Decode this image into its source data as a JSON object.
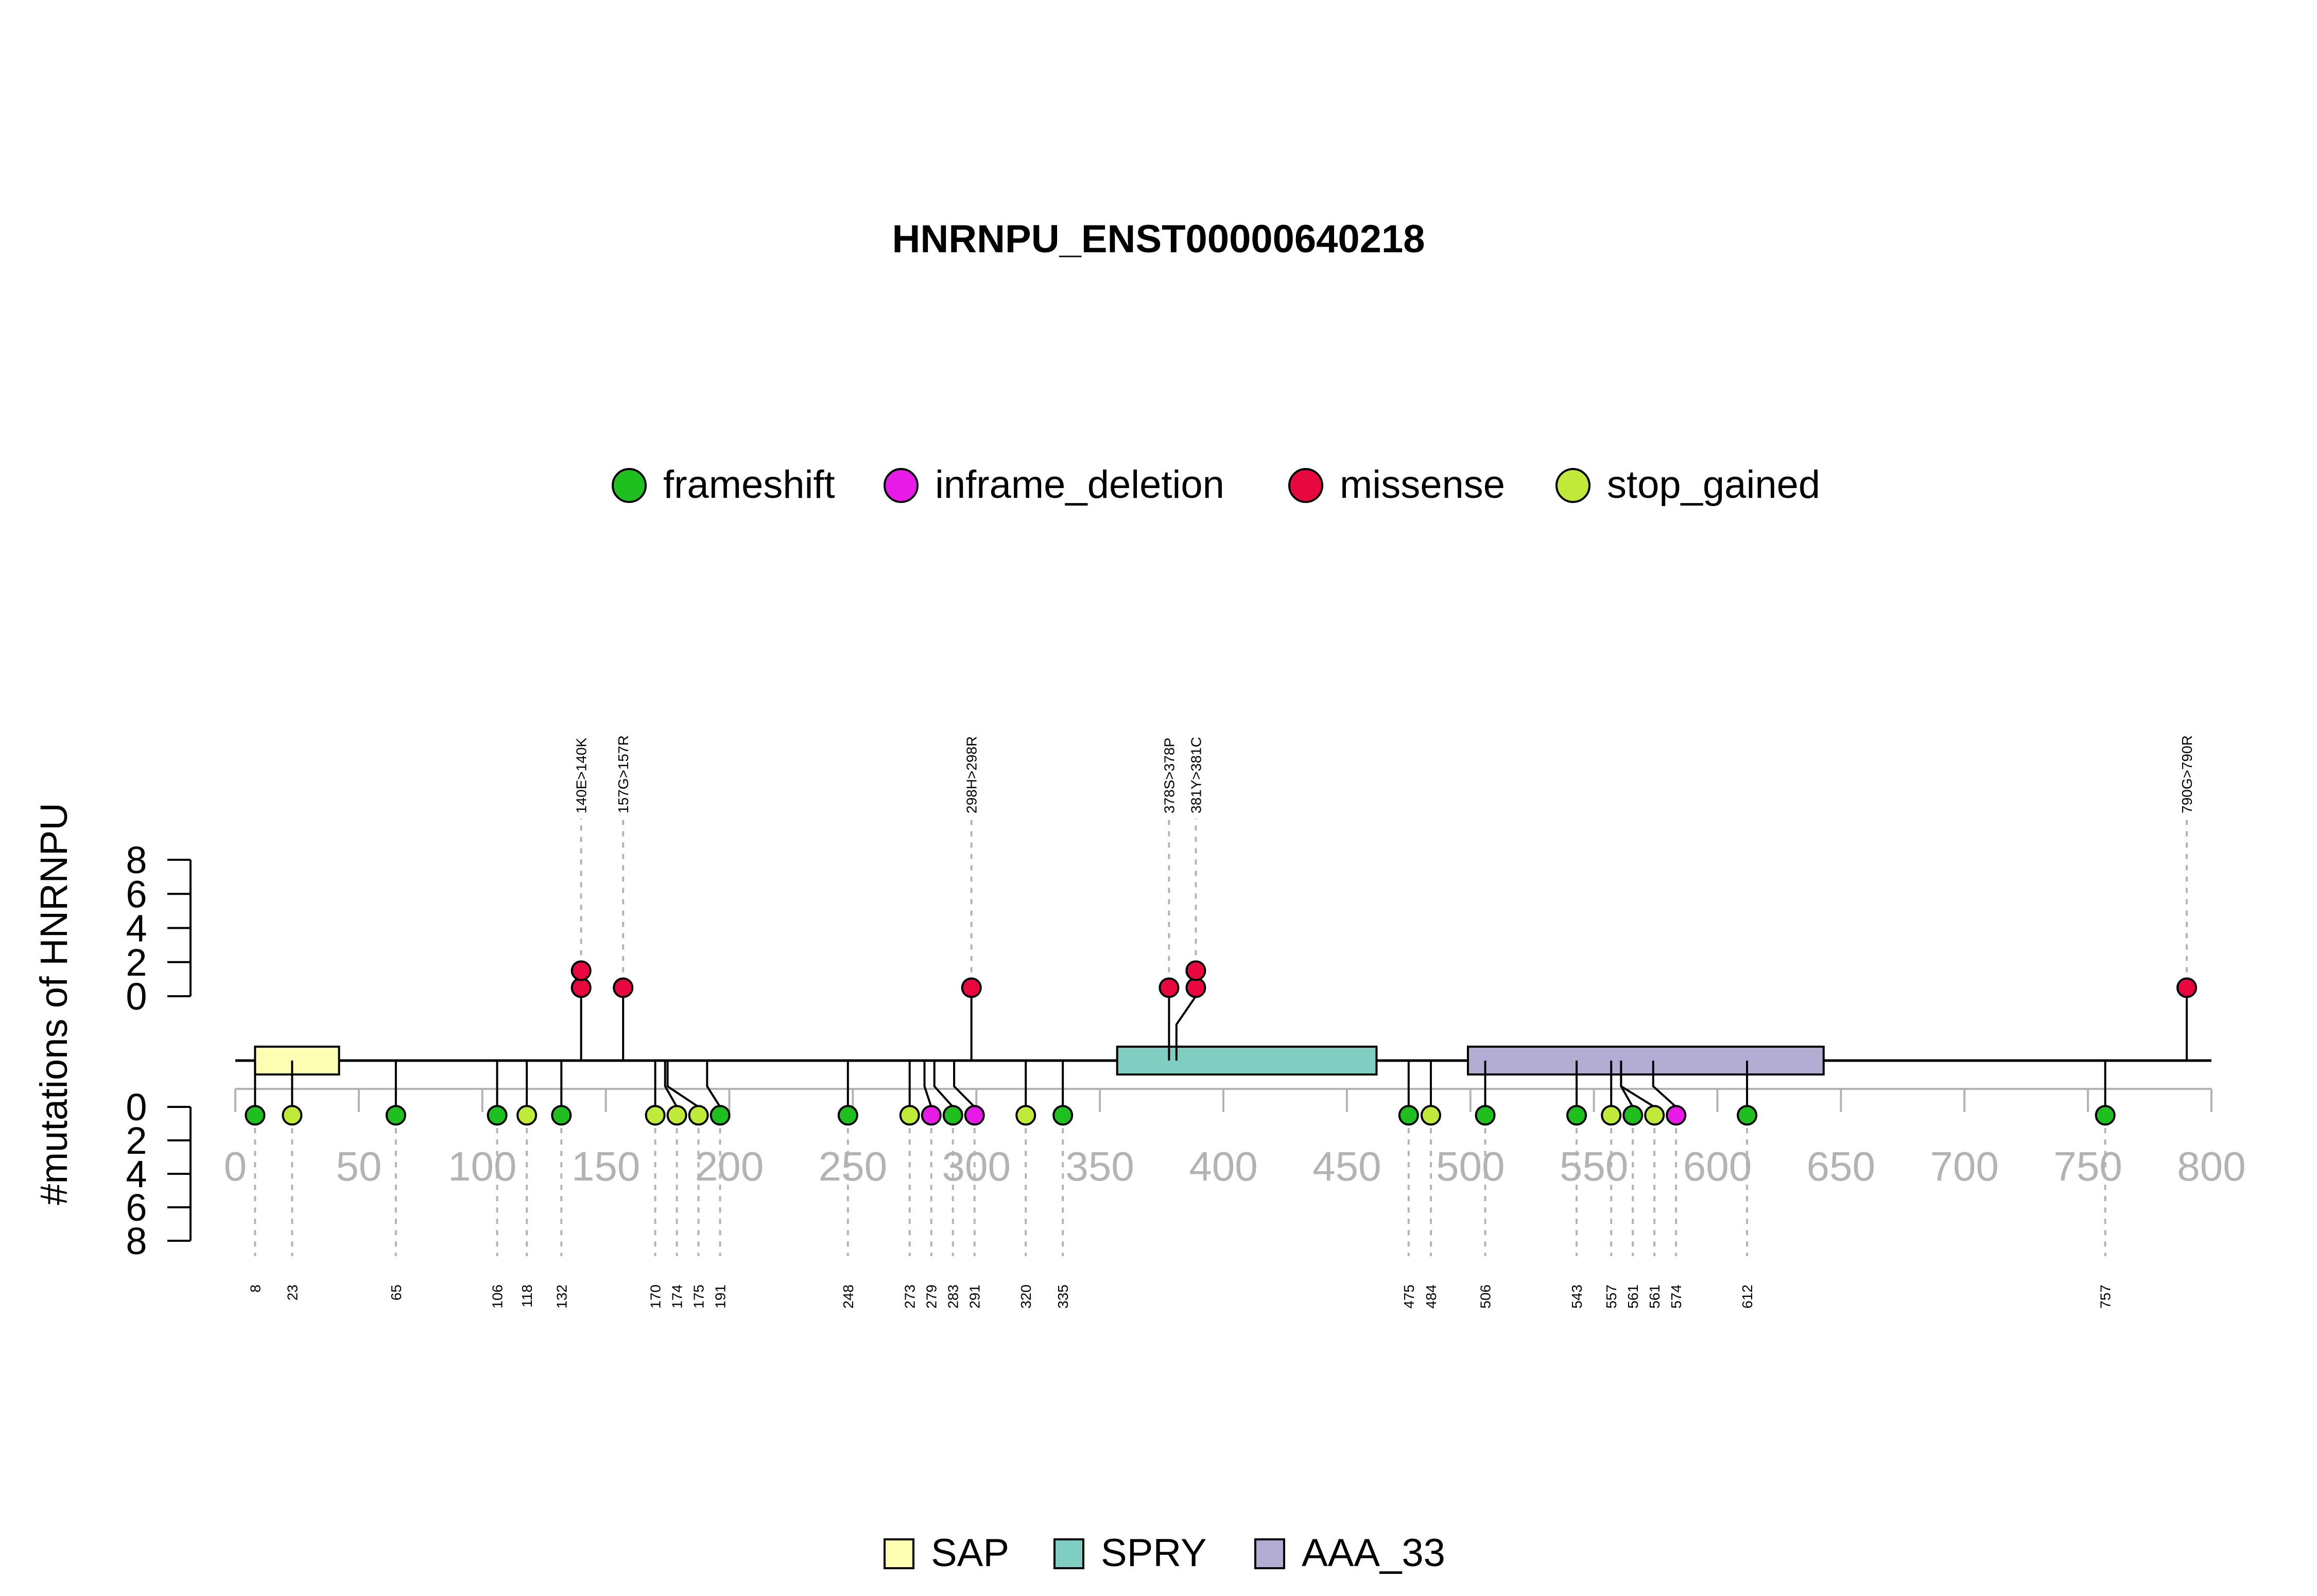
{
  "chart_data": {
    "type": "lollipop",
    "title": "HNRNPU_ENST00000640218",
    "ylabel": "#mutations of HNRNPU",
    "xlim": [
      0,
      800
    ],
    "x_ticks": [
      0,
      50,
      100,
      150,
      200,
      250,
      300,
      350,
      400,
      450,
      500,
      550,
      600,
      650,
      700,
      750,
      800
    ],
    "x_tick_labels": [
      "0",
      "50",
      "100",
      "150",
      "200",
      "250",
      "300",
      "350",
      "400",
      "450",
      "500",
      "550",
      "600",
      "650",
      "700",
      "750",
      "800"
    ],
    "y_ticks": [
      0,
      2,
      4,
      6,
      8
    ],
    "y_tick_labels": [
      "0",
      "2",
      "4",
      "6",
      "8"
    ],
    "ylim": [
      0,
      8
    ],
    "mutation_legend": [
      {
        "name": "frameshift",
        "color": "#1FBF1F"
      },
      {
        "name": "inframe_deletion",
        "color": "#E81AE8"
      },
      {
        "name": "missense",
        "color": "#E8083F"
      },
      {
        "name": "stop_gained",
        "color": "#BFEA3A"
      }
    ],
    "domains": [
      {
        "name": "SAP",
        "start": 8,
        "end": 42,
        "color": "#FFFFB3"
      },
      {
        "name": "SPRY",
        "start": 357,
        "end": 462,
        "color": "#80CDC1"
      },
      {
        "name": "AAA_33",
        "start": 499,
        "end": 643,
        "color": "#B3ADD3"
      }
    ],
    "upper_mutations": [
      {
        "pos": 140,
        "count": 2,
        "type": "missense",
        "label": "140E>140K"
      },
      {
        "pos": 157,
        "count": 1,
        "type": "missense",
        "label": "157G>157R"
      },
      {
        "pos": 298,
        "count": 1,
        "type": "missense",
        "label": "298H>298R"
      },
      {
        "pos": 378,
        "count": 1,
        "type": "missense",
        "label": "378S>378P"
      },
      {
        "pos": 381,
        "count": 2,
        "type": "missense",
        "label": "381Y>381C"
      },
      {
        "pos": 790,
        "count": 1,
        "type": "missense",
        "label": "790G>790R"
      }
    ],
    "lower_mutations": [
      {
        "pos": 8,
        "count": 1,
        "type": "frameshift",
        "label": "8"
      },
      {
        "pos": 23,
        "count": 1,
        "type": "stop_gained",
        "label": "23"
      },
      {
        "pos": 65,
        "count": 1,
        "type": "frameshift",
        "label": "65"
      },
      {
        "pos": 106,
        "count": 1,
        "type": "frameshift",
        "label": "106"
      },
      {
        "pos": 118,
        "count": 1,
        "type": "stop_gained",
        "label": "118"
      },
      {
        "pos": 132,
        "count": 1,
        "type": "frameshift",
        "label": "132"
      },
      {
        "pos": 170,
        "count": 1,
        "type": "stop_gained",
        "label": "170"
      },
      {
        "pos": 174,
        "count": 1,
        "type": "stop_gained",
        "label": "174"
      },
      {
        "pos": 175,
        "count": 1,
        "type": "stop_gained",
        "label": "175"
      },
      {
        "pos": 191,
        "count": 1,
        "type": "frameshift",
        "label": "191"
      },
      {
        "pos": 248,
        "count": 1,
        "type": "frameshift",
        "label": "248"
      },
      {
        "pos": 273,
        "count": 1,
        "type": "stop_gained",
        "label": "273"
      },
      {
        "pos": 279,
        "count": 1,
        "type": "inframe_deletion",
        "label": "279"
      },
      {
        "pos": 283,
        "count": 1,
        "type": "frameshift",
        "label": "283"
      },
      {
        "pos": 291,
        "count": 1,
        "type": "inframe_deletion",
        "label": "291"
      },
      {
        "pos": 320,
        "count": 1,
        "type": "stop_gained",
        "label": "320"
      },
      {
        "pos": 335,
        "count": 1,
        "type": "frameshift",
        "label": "335"
      },
      {
        "pos": 475,
        "count": 1,
        "type": "frameshift",
        "label": "475"
      },
      {
        "pos": 484,
        "count": 1,
        "type": "stop_gained",
        "label": "484"
      },
      {
        "pos": 506,
        "count": 1,
        "type": "frameshift",
        "label": "506"
      },
      {
        "pos": 543,
        "count": 1,
        "type": "frameshift",
        "label": "543"
      },
      {
        "pos": 557,
        "count": 1,
        "type": "stop_gained",
        "label": "557"
      },
      {
        "pos": 561,
        "count": 1,
        "type": "frameshift",
        "label": "561"
      },
      {
        "pos": 561,
        "count": 1,
        "type": "stop_gained",
        "label": "561"
      },
      {
        "pos": 574,
        "count": 1,
        "type": "inframe_deletion",
        "label": "574"
      },
      {
        "pos": 612,
        "count": 1,
        "type": "frameshift",
        "label": "612"
      },
      {
        "pos": 757,
        "count": 1,
        "type": "frameshift",
        "label": "757"
      }
    ]
  }
}
